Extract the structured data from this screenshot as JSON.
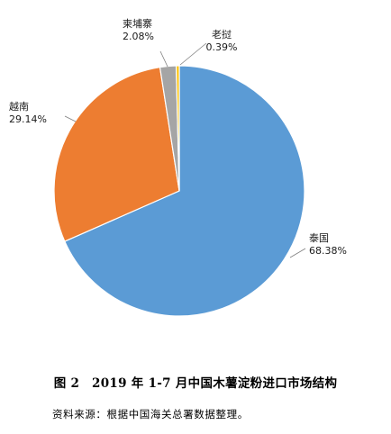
{
  "chart_data": {
    "type": "pie",
    "categories": [
      "泰国",
      "越南",
      "柬埔寨",
      "老挝"
    ],
    "values": [
      68.38,
      29.14,
      2.08,
      0.39
    ],
    "value_labels": [
      "68.38%",
      "29.14%",
      "2.08%",
      "0.39%"
    ],
    "colors": [
      "#5b9bd5",
      "#ed7d31",
      "#a5a5a5",
      "#ffc000"
    ],
    "legend": "none",
    "title": ""
  },
  "caption": "图 2　2019 年 1-7 月中国木薯淀粉进口市场结构",
  "source": "资料来源：根据中国海关总署数据整理。"
}
